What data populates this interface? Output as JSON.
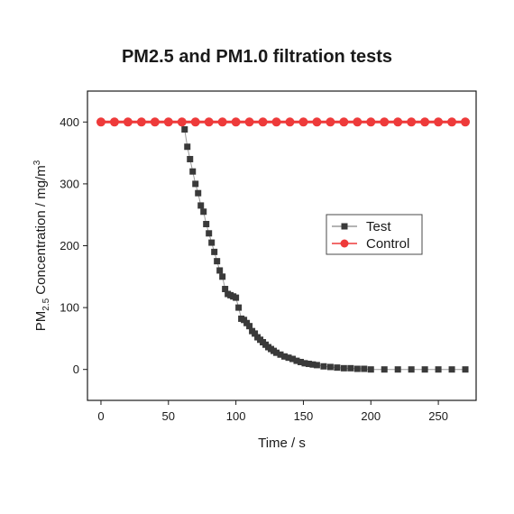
{
  "chart_data": {
    "type": "scatter",
    "title": "PM2.5 and PM1.0 filtration tests",
    "xlabel": "Time / s",
    "ylabel": {
      "prefix": "PM",
      "sub": "2.5",
      "mid": " Concentration / mg/m",
      "sup": "3"
    },
    "xlim": [
      -10,
      278
    ],
    "ylim": [
      -50,
      450
    ],
    "xticks": [
      0,
      50,
      100,
      150,
      200,
      250
    ],
    "yticks": [
      0,
      100,
      200,
      300,
      400
    ],
    "grid": false,
    "legend_position": "center-right",
    "series": [
      {
        "name": "Test",
        "color": "#3a3a3a",
        "marker": "square",
        "x": [
          60,
          62,
          64,
          66,
          68,
          70,
          72,
          74,
          76,
          78,
          80,
          82,
          84,
          86,
          88,
          90,
          92,
          94,
          96,
          98,
          100,
          102,
          104,
          106,
          108,
          110,
          112,
          114,
          116,
          118,
          120,
          122,
          124,
          126,
          128,
          130,
          133,
          136,
          139,
          142,
          145,
          148,
          151,
          154,
          157,
          160,
          165,
          170,
          175,
          180,
          185,
          190,
          195,
          200,
          210,
          220,
          230,
          240,
          250,
          260,
          270
        ],
        "y": [
          400,
          388,
          360,
          340,
          320,
          300,
          285,
          265,
          255,
          235,
          220,
          205,
          190,
          175,
          160,
          150,
          130,
          122,
          120,
          118,
          116,
          100,
          82,
          80,
          75,
          70,
          62,
          58,
          52,
          48,
          44,
          40,
          36,
          33,
          30,
          27,
          24,
          21,
          19,
          17,
          14,
          12,
          10,
          9,
          8,
          7,
          5,
          4,
          3,
          2,
          2,
          1,
          1,
          0,
          0,
          0,
          0,
          0,
          0,
          0,
          0
        ]
      },
      {
        "name": "Control",
        "color": "#ee3a3a",
        "marker": "circle",
        "x": [
          0,
          10,
          20,
          30,
          40,
          50,
          60,
          70,
          80,
          90,
          100,
          110,
          120,
          130,
          140,
          150,
          160,
          170,
          180,
          190,
          200,
          210,
          220,
          230,
          240,
          250,
          260,
          270
        ],
        "y": [
          400,
          400,
          400,
          400,
          400,
          400,
          400,
          400,
          400,
          400,
          400,
          400,
          400,
          400,
          400,
          400,
          400,
          400,
          400,
          400,
          400,
          400,
          400,
          400,
          400,
          400,
          400,
          400
        ]
      }
    ]
  }
}
